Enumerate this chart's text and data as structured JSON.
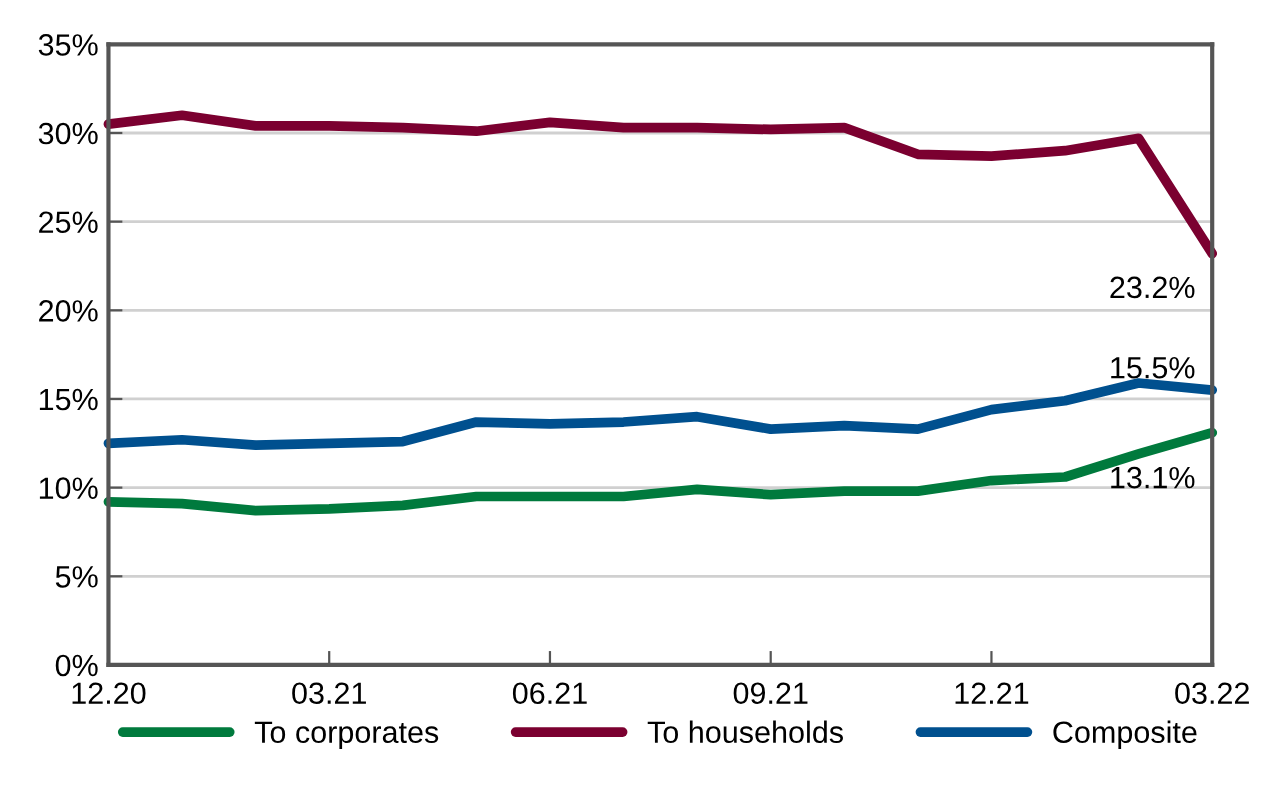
{
  "chart_data": {
    "type": "line",
    "categories": [
      "12.20",
      null,
      null,
      "03.21",
      null,
      null,
      "06.21",
      null,
      null,
      "09.21",
      null,
      null,
      "12.21",
      null,
      null,
      "03.22"
    ],
    "series": [
      {
        "name": "To corporates",
        "color": "#007a3d",
        "values": [
          9.2,
          9.1,
          8.7,
          8.8,
          9.0,
          9.5,
          9.5,
          9.5,
          9.9,
          9.6,
          9.8,
          9.8,
          10.4,
          10.6,
          11.9,
          13.1
        ]
      },
      {
        "name": "To households",
        "color": "#7b0030",
        "values": [
          30.5,
          31.0,
          30.4,
          30.4,
          30.3,
          30.1,
          30.6,
          30.3,
          30.3,
          30.2,
          30.3,
          28.8,
          28.7,
          29.0,
          29.7,
          23.2
        ]
      },
      {
        "name": "Composite",
        "color": "#00508f",
        "values": [
          12.5,
          12.7,
          12.4,
          12.5,
          12.6,
          13.7,
          13.6,
          13.7,
          14.0,
          13.3,
          13.5,
          13.3,
          14.4,
          14.9,
          15.9,
          15.5
        ]
      }
    ],
    "ylim": [
      0,
      35
    ],
    "yticks": [
      {
        "value": 0,
        "label": "0%"
      },
      {
        "value": 5,
        "label": "5%"
      },
      {
        "value": 10,
        "label": "10%"
      },
      {
        "value": 15,
        "label": "15%"
      },
      {
        "value": 20,
        "label": "20%"
      },
      {
        "value": 25,
        "label": "25%"
      },
      {
        "value": 30,
        "label": "30%"
      },
      {
        "value": 35,
        "label": "35%"
      }
    ],
    "annotations": [
      {
        "text": "23.2%",
        "x": "03.22",
        "y": 23.2
      },
      {
        "text": "15.5%",
        "x": "03.22",
        "y": 15.5
      },
      {
        "text": "13.1%",
        "x": "03.22",
        "y": 13.1
      }
    ],
    "grid": "y",
    "legend": "bottom",
    "marker": "none",
    "line_style": "solid"
  }
}
